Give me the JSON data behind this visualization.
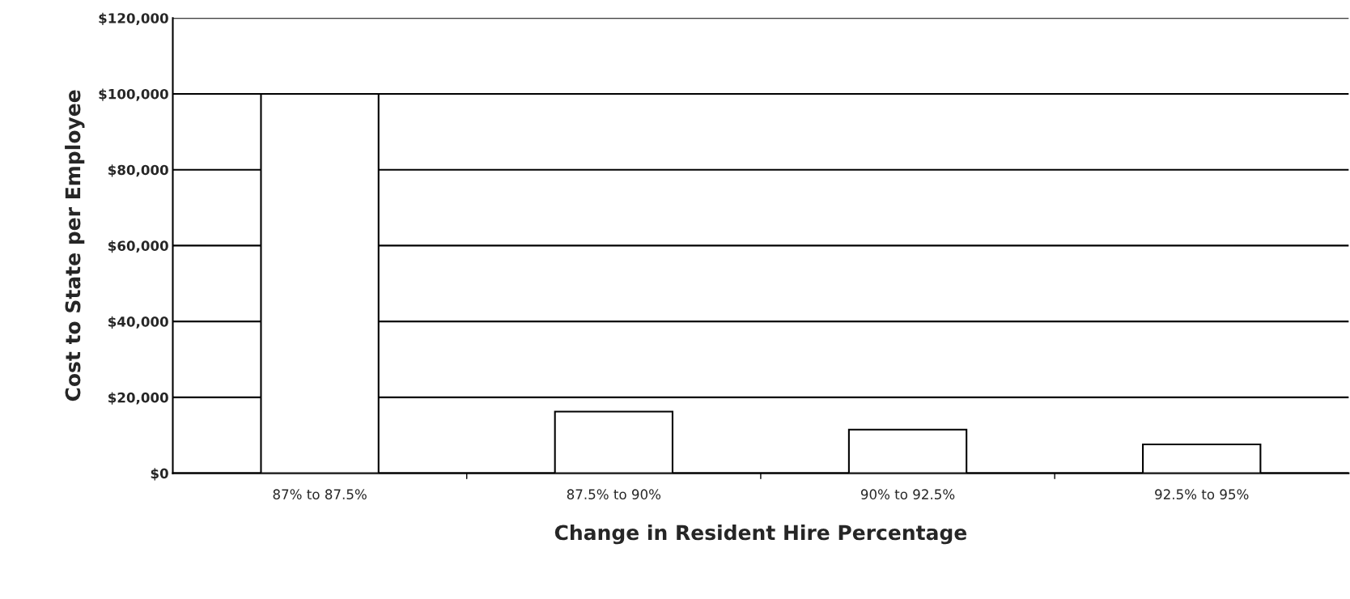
{
  "chart_data": {
    "type": "bar",
    "xlabel": "Change in Resident Hire Percentage",
    "ylabel": "Cost to State per Employee",
    "categories": [
      "87% to 87.5%",
      "87.5% to 90%",
      "90% to 92.5%",
      "92.5% to 95%"
    ],
    "values": [
      100000,
      16250,
      11500,
      7600
    ],
    "color": "#ffffff",
    "ylim": [
      0,
      120000
    ],
    "yticks": [
      {
        "value": 0,
        "label": "$0"
      },
      {
        "value": 20000,
        "label": "$20,000"
      },
      {
        "value": 40000,
        "label": "$40,000"
      },
      {
        "value": 60000,
        "label": "$60,000"
      },
      {
        "value": 80000,
        "label": "$80,000"
      },
      {
        "value": 100000,
        "label": "$100,000"
      },
      {
        "value": 120000,
        "label": "$120,000"
      }
    ],
    "grid": "y"
  }
}
